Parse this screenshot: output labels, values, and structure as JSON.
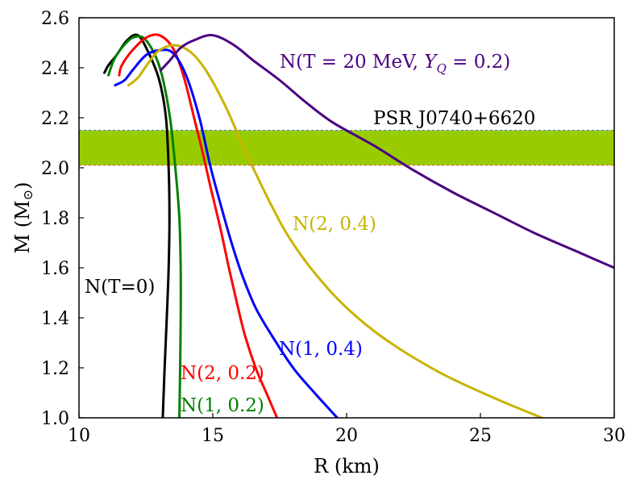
{
  "chart_data": {
    "type": "line",
    "xlabel": "R (km)",
    "ylabel": "M (M",
    "ylabel_symbol": "⊙",
    "ylabel_close": ")",
    "xlim": [
      10,
      30
    ],
    "ylim": [
      1.0,
      2.6
    ],
    "xticks": [
      10,
      15,
      20,
      25,
      30
    ],
    "yticks": [
      1.0,
      1.2,
      1.4,
      1.6,
      1.8,
      2.0,
      2.2,
      2.4,
      2.6
    ],
    "xtick_labels": [
      "10",
      "15",
      "20",
      "25",
      "30"
    ],
    "ytick_labels": [
      "1.0",
      "1.2",
      "1.4",
      "1.6",
      "1.8",
      "2.0",
      "2.2",
      "2.4",
      "2.6"
    ],
    "band": {
      "label": "PSR J0740+6620",
      "lower": 2.01,
      "upper": 2.15,
      "color": "#99cc00"
    },
    "series": [
      {
        "name": "N(T=0)",
        "color": "#000000",
        "points": [
          [
            13.13,
            1.0
          ],
          [
            13.2,
            1.2
          ],
          [
            13.28,
            1.4
          ],
          [
            13.35,
            1.6
          ],
          [
            13.38,
            1.8
          ],
          [
            13.35,
            2.0
          ],
          [
            13.25,
            2.2
          ],
          [
            13.0,
            2.35
          ],
          [
            12.6,
            2.46
          ],
          [
            12.2,
            2.53
          ],
          [
            11.8,
            2.51
          ],
          [
            11.4,
            2.45
          ],
          [
            11.1,
            2.41
          ],
          [
            10.95,
            2.38
          ]
        ]
      },
      {
        "name": "N(1, 0.2)",
        "color": "#008000",
        "points": [
          [
            13.75,
            1.0
          ],
          [
            13.78,
            1.2
          ],
          [
            13.8,
            1.4
          ],
          [
            13.8,
            1.6
          ],
          [
            13.75,
            1.8
          ],
          [
            13.6,
            2.0
          ],
          [
            13.4,
            2.2
          ],
          [
            13.1,
            2.37
          ],
          [
            12.8,
            2.46
          ],
          [
            12.4,
            2.52
          ],
          [
            12.0,
            2.52
          ],
          [
            11.6,
            2.48
          ],
          [
            11.3,
            2.43
          ],
          [
            11.1,
            2.37
          ]
        ]
      },
      {
        "name": "N(2, 0.2)",
        "color": "#ff0000",
        "points": [
          [
            17.4,
            1.0
          ],
          [
            17.0,
            1.1
          ],
          [
            16.6,
            1.2
          ],
          [
            16.2,
            1.33
          ],
          [
            15.9,
            1.46
          ],
          [
            15.6,
            1.6
          ],
          [
            15.3,
            1.75
          ],
          [
            14.9,
            1.93
          ],
          [
            14.6,
            2.07
          ],
          [
            14.3,
            2.2
          ],
          [
            13.9,
            2.37
          ],
          [
            13.5,
            2.48
          ],
          [
            13.0,
            2.53
          ],
          [
            12.5,
            2.52
          ],
          [
            12.0,
            2.47
          ],
          [
            11.6,
            2.41
          ],
          [
            11.5,
            2.37
          ]
        ]
      },
      {
        "name": "N(1, 0.4)",
        "color": "#0000ff",
        "points": [
          [
            19.65,
            1.0
          ],
          [
            18.8,
            1.1
          ],
          [
            18.0,
            1.2
          ],
          [
            17.2,
            1.33
          ],
          [
            16.6,
            1.44
          ],
          [
            16.1,
            1.57
          ],
          [
            15.7,
            1.7
          ],
          [
            15.3,
            1.85
          ],
          [
            14.9,
            2.01
          ],
          [
            14.5,
            2.2
          ],
          [
            14.0,
            2.37
          ],
          [
            13.5,
            2.46
          ],
          [
            13.0,
            2.47
          ],
          [
            12.5,
            2.45
          ],
          [
            12.0,
            2.39
          ],
          [
            11.7,
            2.35
          ],
          [
            11.35,
            2.33
          ]
        ]
      },
      {
        "name": "N(2, 0.4)",
        "color": "#c8b400",
        "points": [
          [
            27.3,
            1.0
          ],
          [
            25.5,
            1.08
          ],
          [
            23.5,
            1.18
          ],
          [
            21.5,
            1.31
          ],
          [
            20.0,
            1.44
          ],
          [
            18.8,
            1.58
          ],
          [
            17.8,
            1.73
          ],
          [
            17.0,
            1.89
          ],
          [
            16.2,
            2.07
          ],
          [
            15.5,
            2.24
          ],
          [
            14.8,
            2.38
          ],
          [
            14.2,
            2.46
          ],
          [
            13.6,
            2.49
          ],
          [
            13.0,
            2.47
          ],
          [
            12.6,
            2.42
          ],
          [
            12.2,
            2.36
          ],
          [
            11.85,
            2.33
          ]
        ]
      },
      {
        "name": "N(T = 20 MeV, Y_Q = 0.2)",
        "color": "#4b0082",
        "points": [
          [
            30.0,
            1.6
          ],
          [
            28.5,
            1.67
          ],
          [
            27.0,
            1.74
          ],
          [
            25.5,
            1.82
          ],
          [
            24.0,
            1.9
          ],
          [
            22.5,
            1.99
          ],
          [
            21.0,
            2.09
          ],
          [
            19.5,
            2.18
          ],
          [
            18.5,
            2.26
          ],
          [
            17.5,
            2.35
          ],
          [
            16.5,
            2.43
          ],
          [
            15.8,
            2.49
          ],
          [
            15.0,
            2.53
          ],
          [
            14.3,
            2.51
          ],
          [
            13.8,
            2.48
          ],
          [
            13.4,
            2.43
          ],
          [
            13.05,
            2.39
          ]
        ]
      }
    ],
    "annotations": {
      "t0": "N(T=0)",
      "n1_02": "N(1, 0.2)",
      "n2_02": "N(2, 0.2)",
      "n1_04": "N(1, 0.4)",
      "n2_04": "N(2, 0.4)",
      "n20_prefix": "N(T = 20 MeV, ",
      "n20_y": "Y",
      "n20_sub": "Q",
      "n20_suffix": " = 0.2)",
      "psr": "PSR J0740+6620"
    }
  }
}
